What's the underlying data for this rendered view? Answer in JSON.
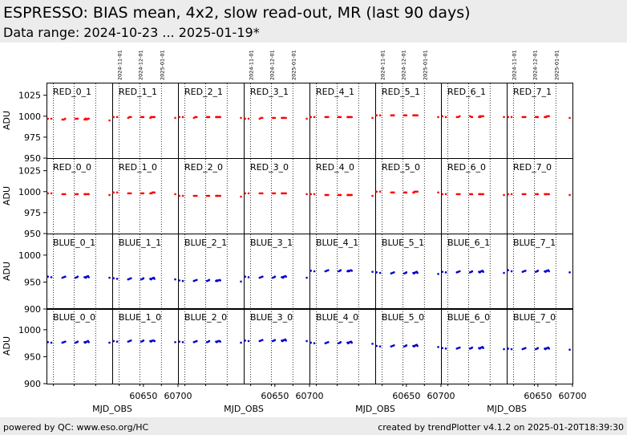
{
  "header": {
    "title": "ESPRESSO: BIAS mean, 4x2, slow read-out, MR (last 90 days)",
    "subtitle": "Data range: 2024-10-23 ... 2025-01-19*"
  },
  "footer": {
    "left": "powered by QC: www.eso.org/HC",
    "right": "created by trendPlotter v4.1.2 on 2025-01-20T18:39:30"
  },
  "colors": {
    "red_series": "#ff0000",
    "blue_series": "#0000cc",
    "header_bg": "#ececec"
  },
  "chart_data": {
    "type": "scatter",
    "grid": "small-multiples 8 columns x 4 rows",
    "xlabel": "MJD_OBS",
    "ylabel": "ADU",
    "xlim": [
      60605,
      60700
    ],
    "xticks": [
      60650,
      60700
    ],
    "date_markers": [
      {
        "label": "2024-11-01",
        "mjd": 60615
      },
      {
        "label": "2024-12-01",
        "mjd": 60645
      },
      {
        "label": "2025-01-01",
        "mjd": 60676
      }
    ],
    "sample_mjd": [
      60607,
      60612,
      60628,
      60630,
      60632,
      60647,
      60649,
      60650,
      60660,
      60661,
      60662,
      60663,
      60665,
      60666,
      60696
    ],
    "rows": [
      {
        "ylim": [
          950,
          1040
        ],
        "yticks": [
          950,
          975,
          1000,
          1025
        ],
        "panels": [
          {
            "name": "RED_0_1",
            "color": "red",
            "y": [
              997,
              997,
              996,
              996,
              997,
              997,
              997,
              997,
              996,
              997,
              997,
              996,
              997,
              997,
              995
            ]
          },
          {
            "name": "RED_1_1",
            "color": "red",
            "y": [
              999,
              999,
              998,
              999,
              999,
              999,
              999,
              999,
              998,
              999,
              999,
              999,
              999,
              999,
              998
            ]
          },
          {
            "name": "RED_2_1",
            "color": "red",
            "y": [
              999,
              999,
              998,
              999,
              999,
              999,
              999,
              999,
              999,
              999,
              999,
              999,
              999,
              999,
              998
            ]
          },
          {
            "name": "RED_3_1",
            "color": "red",
            "y": [
              997,
              997,
              997,
              998,
              998,
              998,
              998,
              998,
              998,
              998,
              998,
              998,
              998,
              998,
              997
            ]
          },
          {
            "name": "RED_4_1",
            "color": "red",
            "y": [
              999,
              999,
              999,
              999,
              999,
              999,
              999,
              999,
              999,
              999,
              999,
              999,
              999,
              999,
              998
            ]
          },
          {
            "name": "RED_5_1",
            "color": "red",
            "y": [
              1001,
              1001,
              1001,
              1001,
              1001,
              1001,
              1001,
              1001,
              1001,
              1001,
              1001,
              1001,
              1001,
              1001,
              999
            ]
          },
          {
            "name": "RED_6_1",
            "color": "red",
            "y": [
              1000,
              999,
              999,
              999,
              1000,
              1000,
              999,
              999,
              999,
              1000,
              999,
              1000,
              1000,
              1000,
              999
            ]
          },
          {
            "name": "RED_7_1",
            "color": "red",
            "y": [
              999,
              999,
              999,
              999,
              999,
              999,
              999,
              999,
              999,
              999,
              999,
              1000,
              1000,
              1000,
              998
            ]
          }
        ]
      },
      {
        "ylim": [
          950,
          1040
        ],
        "yticks": [
          950,
          975,
          1000,
          1025
        ],
        "panels": [
          {
            "name": "RED_0_0",
            "color": "red",
            "y": [
              998,
              998,
              997,
              997,
              997,
              997,
              997,
              997,
              997,
              997,
              997,
              997,
              997,
              997,
              996
            ]
          },
          {
            "name": "RED_1_0",
            "color": "red",
            "y": [
              999,
              999,
              998,
              998,
              998,
              998,
              998,
              998,
              998,
              998,
              998,
              999,
              999,
              999,
              997
            ]
          },
          {
            "name": "RED_2_0",
            "color": "red",
            "y": [
              995,
              995,
              995,
              995,
              995,
              995,
              995,
              995,
              995,
              995,
              995,
              995,
              995,
              995,
              994
            ]
          },
          {
            "name": "RED_3_0",
            "color": "red",
            "y": [
              998,
              998,
              998,
              998,
              998,
              998,
              998,
              998,
              998,
              998,
              998,
              998,
              998,
              998,
              997
            ]
          },
          {
            "name": "RED_4_0",
            "color": "red",
            "y": [
              997,
              997,
              996,
              996,
              996,
              996,
              996,
              996,
              996,
              996,
              996,
              996,
              996,
              996,
              995
            ]
          },
          {
            "name": "RED_5_0",
            "color": "red",
            "y": [
              1000,
              1000,
              999,
              999,
              999,
              999,
              999,
              999,
              999,
              999,
              1000,
              1000,
              1000,
              1000,
              999
            ]
          },
          {
            "name": "RED_6_0",
            "color": "red",
            "y": [
              997,
              997,
              997,
              997,
              997,
              997,
              997,
              997,
              997,
              997,
              997,
              997,
              997,
              997,
              996
            ]
          },
          {
            "name": "RED_7_0",
            "color": "red",
            "y": [
              997,
              997,
              997,
              997,
              997,
              997,
              997,
              997,
              997,
              997,
              997,
              997,
              997,
              997,
              996
            ]
          }
        ]
      },
      {
        "ylim": [
          900,
          1040
        ],
        "yticks": [
          900,
          950,
          1000
        ],
        "panels": [
          {
            "name": "BLUE_0_1",
            "color": "blue",
            "y": [
              960,
              959,
              958,
              959,
              960,
              958,
              959,
              960,
              959,
              959,
              958,
              960,
              961,
              959,
              958
            ]
          },
          {
            "name": "BLUE_1_1",
            "color": "blue",
            "y": [
              957,
              956,
              955,
              956,
              957,
              955,
              956,
              957,
              956,
              955,
              956,
              957,
              958,
              956,
              955
            ]
          },
          {
            "name": "BLUE_2_1",
            "color": "blue",
            "y": [
              953,
              952,
              952,
              953,
              954,
              952,
              953,
              954,
              952,
              953,
              952,
              953,
              954,
              953,
              951
            ]
          },
          {
            "name": "BLUE_3_1",
            "color": "blue",
            "y": [
              960,
              959,
              958,
              959,
              960,
              958,
              959,
              960,
              959,
              959,
              958,
              960,
              961,
              960,
              958
            ]
          },
          {
            "name": "BLUE_4_1",
            "color": "blue",
            "y": [
              971,
              970,
              970,
              971,
              972,
              970,
              971,
              972,
              970,
              971,
              970,
              971,
              972,
              971,
              969
            ]
          },
          {
            "name": "BLUE_5_1",
            "color": "blue",
            "y": [
              968,
              967,
              966,
              967,
              968,
              966,
              967,
              968,
              967,
              966,
              967,
              968,
              969,
              967,
              965
            ]
          },
          {
            "name": "BLUE_6_1",
            "color": "blue",
            "y": [
              969,
              968,
              968,
              969,
              970,
              968,
              969,
              970,
              969,
              968,
              969,
              970,
              971,
              969,
              967
            ]
          },
          {
            "name": "BLUE_7_1",
            "color": "blue",
            "y": [
              972,
              970,
              969,
              970,
              971,
              969,
              970,
              971,
              970,
              969,
              970,
              971,
              972,
              970,
              968
            ]
          }
        ]
      },
      {
        "ylim": [
          900,
          1040
        ],
        "yticks": [
          900,
          950,
          1000
        ],
        "panels": [
          {
            "name": "BLUE_0_0",
            "color": "blue",
            "y": [
              977,
              976,
              976,
              977,
              978,
              976,
              977,
              978,
              977,
              976,
              977,
              978,
              979,
              977,
              976
            ]
          },
          {
            "name": "BLUE_1_0",
            "color": "blue",
            "y": [
              979,
              978,
              978,
              979,
              980,
              978,
              979,
              980,
              979,
              978,
              979,
              980,
              980,
              979,
              977
            ]
          },
          {
            "name": "BLUE_2_0",
            "color": "blue",
            "y": [
              978,
              977,
              977,
              978,
              979,
              977,
              978,
              979,
              978,
              977,
              978,
              979,
              979,
              978,
              976
            ]
          },
          {
            "name": "BLUE_3_0",
            "color": "blue",
            "y": [
              980,
              979,
              979,
              980,
              981,
              979,
              980,
              981,
              980,
              979,
              980,
              981,
              982,
              980,
              979
            ]
          },
          {
            "name": "BLUE_4_0",
            "color": "blue",
            "y": [
              976,
              975,
              975,
              976,
              977,
              975,
              976,
              977,
              976,
              975,
              976,
              977,
              978,
              976,
              974
            ]
          },
          {
            "name": "BLUE_5_0",
            "color": "blue",
            "y": [
              970,
              969,
              969,
              970,
              971,
              969,
              970,
              971,
              970,
              969,
              970,
              971,
              972,
              970,
              968
            ]
          },
          {
            "name": "BLUE_6_0",
            "color": "blue",
            "y": [
              966,
              965,
              965,
              966,
              967,
              965,
              966,
              967,
              966,
              965,
              966,
              967,
              968,
              966,
              964
            ]
          },
          {
            "name": "BLUE_7_0",
            "color": "blue",
            "y": [
              965,
              964,
              964,
              965,
              966,
              964,
              965,
              966,
              965,
              964,
              965,
              966,
              967,
              965,
              963
            ]
          }
        ]
      }
    ]
  }
}
